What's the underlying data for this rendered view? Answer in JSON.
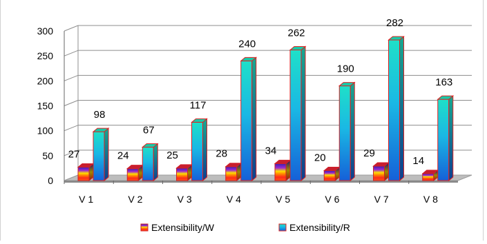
{
  "chart_data": {
    "type": "bar",
    "title": "",
    "xlabel": "",
    "ylabel": "",
    "categories": [
      "V 1",
      "V 2",
      "V 3",
      "V 4",
      "V 5",
      "V 6",
      "V 7",
      "V 8"
    ],
    "ylim": [
      0,
      300
    ],
    "yticks": [
      0,
      50,
      100,
      150,
      200,
      250,
      300
    ],
    "grid": true,
    "legend_position": "bottom",
    "series": [
      {
        "name": "Extensibility/W",
        "values": [
          27,
          24,
          25,
          28,
          34,
          20,
          29,
          14
        ],
        "color": "#e8262c"
      },
      {
        "name": "Extensibility/R",
        "values": [
          98,
          67,
          117,
          240,
          262,
          190,
          282,
          163
        ],
        "color": "#1ea8d8"
      }
    ]
  }
}
